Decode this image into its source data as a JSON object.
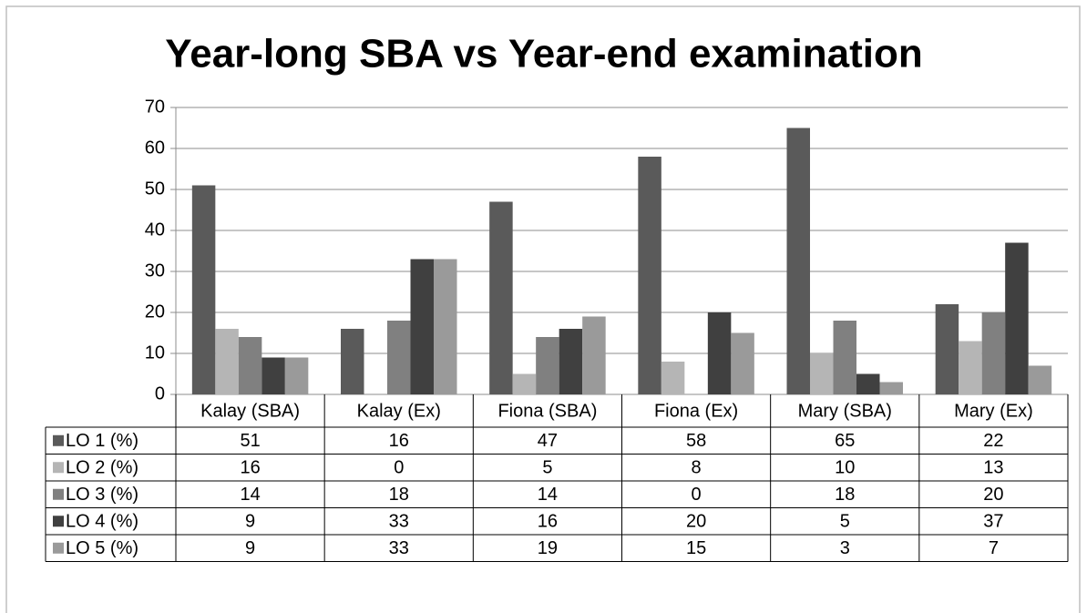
{
  "chart_data": {
    "type": "bar",
    "title": "Year-long SBA vs Year-end examination",
    "categories": [
      "Kalay (SBA)",
      "Kalay (Ex)",
      "Fiona (SBA)",
      "Fiona (Ex)",
      "Mary (SBA)",
      "Mary (Ex)"
    ],
    "series": [
      {
        "name": "LO 1 (%)",
        "color": "#5a5a5a",
        "values": [
          51,
          16,
          47,
          58,
          65,
          22
        ]
      },
      {
        "name": "LO 2 (%)",
        "color": "#b5b5b5",
        "values": [
          16,
          0,
          5,
          8,
          10,
          13
        ]
      },
      {
        "name": "LO 3 (%)",
        "color": "#808080",
        "values": [
          14,
          18,
          14,
          0,
          18,
          20
        ]
      },
      {
        "name": "LO 4 (%)",
        "color": "#404040",
        "values": [
          9,
          33,
          16,
          20,
          5,
          37
        ]
      },
      {
        "name": "LO 5 (%)",
        "color": "#9a9a9a",
        "values": [
          9,
          33,
          19,
          15,
          3,
          7
        ]
      }
    ],
    "ylim": [
      0,
      70
    ],
    "yticks": [
      0,
      10,
      20,
      30,
      40,
      50,
      60,
      70
    ],
    "grid": true
  }
}
